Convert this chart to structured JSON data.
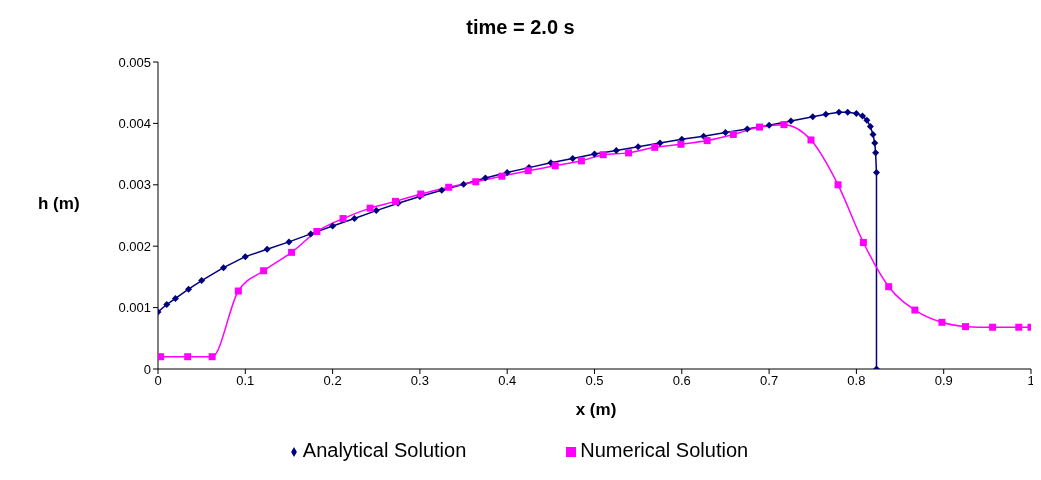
{
  "chart_data": {
    "type": "line",
    "title": "time = 2.0 s",
    "xlabel": "x (m)",
    "ylabel": "h (m)",
    "xlim": [
      0,
      1
    ],
    "xticks": [
      0,
      0.1,
      0.2,
      0.3,
      0.4,
      0.5,
      0.6,
      0.7,
      0.8,
      0.9,
      1
    ],
    "ylim": [
      0,
      0.005
    ],
    "yticks": [
      0,
      0.001,
      0.002,
      0.003,
      0.004,
      0.005
    ],
    "grid": false,
    "legend": "bottom",
    "line_style": "solid",
    "series": [
      {
        "name": "Analytical Solution",
        "color": "#000080",
        "marker": "diamond",
        "x": [
          0,
          0.01,
          0.02,
          0.035,
          0.05,
          0.075,
          0.1,
          0.125,
          0.15,
          0.175,
          0.2,
          0.225,
          0.25,
          0.275,
          0.3,
          0.325,
          0.35,
          0.375,
          0.4,
          0.425,
          0.45,
          0.475,
          0.5,
          0.525,
          0.55,
          0.575,
          0.6,
          0.625,
          0.65,
          0.675,
          0.7,
          0.725,
          0.75,
          0.765,
          0.78,
          0.79,
          0.8,
          0.807,
          0.812,
          0.816,
          0.819,
          0.821,
          0.822,
          0.823,
          0.823
        ],
        "values": [
          0.00093,
          0.00105,
          0.00115,
          0.0013,
          0.00144,
          0.00165,
          0.00183,
          0.00195,
          0.00207,
          0.0022,
          0.00233,
          0.00245,
          0.00258,
          0.0027,
          0.00281,
          0.00291,
          0.00301,
          0.00311,
          0.0032,
          0.00328,
          0.00336,
          0.00343,
          0.0035,
          0.00356,
          0.00362,
          0.00368,
          0.00374,
          0.00379,
          0.00385,
          0.00391,
          0.00397,
          0.00404,
          0.00411,
          0.00415,
          0.00418,
          0.00418,
          0.00416,
          0.00412,
          0.00405,
          0.00395,
          0.00382,
          0.00368,
          0.00352,
          0.0032,
          0
        ]
      },
      {
        "name": "Numerical Solution",
        "color": "#ff00ff",
        "marker": "square",
        "x": [
          0.003,
          0.034,
          0.062,
          0.092,
          0.121,
          0.153,
          0.182,
          0.212,
          0.243,
          0.272,
          0.301,
          0.333,
          0.364,
          0.394,
          0.424,
          0.455,
          0.485,
          0.51,
          0.539,
          0.569,
          0.599,
          0.629,
          0.659,
          0.689,
          0.717,
          0.748,
          0.779,
          0.808,
          0.837,
          0.867,
          0.898,
          0.925,
          0.956,
          0.986,
          1
        ],
        "values": [
          0.0002,
          0.0002,
          0.0002,
          0.00127,
          0.0016,
          0.0019,
          0.00224,
          0.00245,
          0.00262,
          0.00273,
          0.00285,
          0.00296,
          0.00305,
          0.00314,
          0.00323,
          0.00331,
          0.00339,
          0.00349,
          0.00352,
          0.00361,
          0.00366,
          0.00372,
          0.00382,
          0.00394,
          0.00398,
          0.00373,
          0.003,
          0.00206,
          0.00134,
          0.00096,
          0.00076,
          0.00069,
          0.00068,
          0.00068,
          0.00068
        ]
      }
    ]
  }
}
